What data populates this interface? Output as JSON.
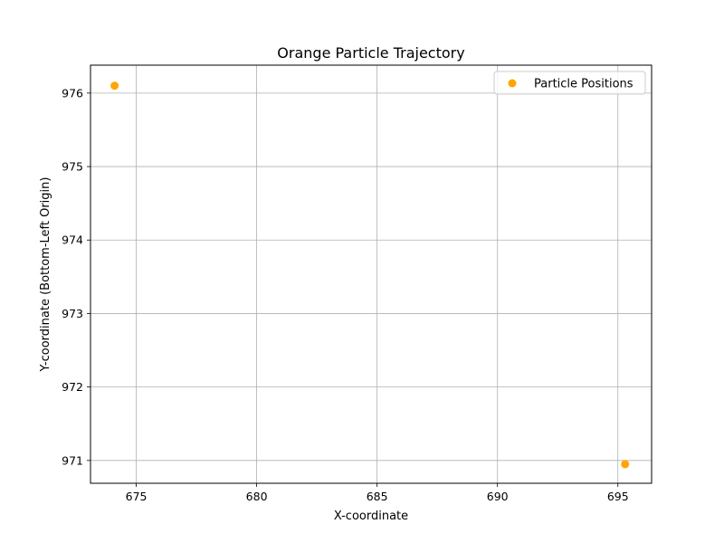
{
  "chart_data": {
    "type": "scatter",
    "title": "Orange Particle Trajectory",
    "xlabel": "X-coordinate",
    "ylabel": "Y-coordinate (Bottom-Left Origin)",
    "xlim": [
      673.1,
      696.4
    ],
    "ylim": [
      970.69,
      976.38
    ],
    "xticks": [
      675,
      680,
      685,
      690,
      695
    ],
    "yticks": [
      971,
      972,
      973,
      974,
      975,
      976
    ],
    "grid": true,
    "legend_position": "top-right",
    "series": [
      {
        "name": "Particle Positions",
        "color": "#ffa500",
        "x": [
          674.1,
          695.3
        ],
        "y": [
          976.1,
          970.95
        ]
      }
    ]
  }
}
